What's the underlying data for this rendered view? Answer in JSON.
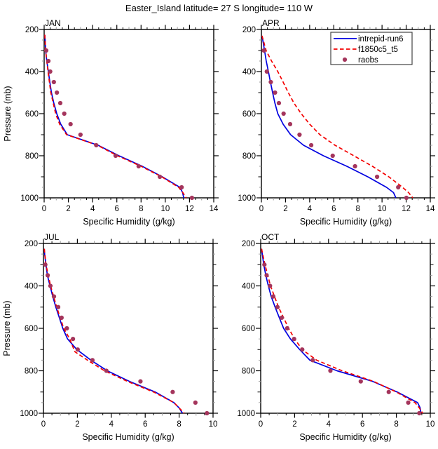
{
  "title": "Easter_Island  latitude= 27 S longitude= 110 W",
  "legend": {
    "entries": [
      {
        "label": "intrepid-run6",
        "marker": "solid-line",
        "color": "#0000E0"
      },
      {
        "label": "f1850c5_t5",
        "marker": "dashed-line",
        "color": "#F40000"
      },
      {
        "label": "raobs",
        "marker": "dot",
        "color": "#A4355C"
      }
    ]
  },
  "colors": {
    "frame": "#000000",
    "minor_tick_gray": "#9a9a9a",
    "intrepid_run6": "#0000E0",
    "f1850c5_t5": "#F40000",
    "raobs": "#A4355C"
  },
  "chart_data": {
    "type": "line",
    "x_label": "Specific Humidity (g/kg)",
    "y_label": "Pressure (mb)",
    "y_axis_inverted": true,
    "y_range": [
      200,
      1000
    ],
    "y_ticks": [
      200,
      400,
      600,
      800,
      1000
    ],
    "panels": [
      {
        "label": "JAN",
        "x_range": [
          0,
          14
        ],
        "x_ticks": [
          0,
          2,
          4,
          6,
          8,
          10,
          12,
          14
        ],
        "series": [
          {
            "name": "intrepid-run6",
            "type": "line",
            "style": "solid",
            "color": "#0000E0",
            "points": [
              [
                225,
                0.05
              ],
              [
                250,
                0.08
              ],
              [
                300,
                0.12
              ],
              [
                350,
                0.22
              ],
              [
                400,
                0.35
              ],
              [
                450,
                0.47
              ],
              [
                500,
                0.6
              ],
              [
                550,
                0.8
              ],
              [
                600,
                1.04
              ],
              [
                650,
                1.37
              ],
              [
                700,
                1.91
              ],
              [
                750,
                4.45
              ],
              [
                800,
                6.18
              ],
              [
                850,
                8.1
              ],
              [
                900,
                9.75
              ],
              [
                950,
                11.2
              ],
              [
                975,
                11.43
              ],
              [
                1000,
                11.52
              ]
            ]
          },
          {
            "name": "f1850c5_t5",
            "type": "line",
            "style": "dashed",
            "color": "#F40000",
            "points": [
              [
                225,
                0.05
              ],
              [
                300,
                0.12
              ],
              [
                400,
                0.32
              ],
              [
                500,
                0.55
              ],
              [
                600,
                0.95
              ],
              [
                650,
                1.28
              ],
              [
                700,
                1.85
              ],
              [
                750,
                4.4
              ],
              [
                800,
                6.05
              ],
              [
                850,
                8.0
              ],
              [
                900,
                9.7
              ],
              [
                950,
                11.1
              ],
              [
                975,
                11.45
              ],
              [
                1000,
                11.72
              ]
            ]
          },
          {
            "name": "raobs",
            "type": "scatter",
            "color": "#A4355C",
            "points": [
              [
                300,
                0.17
              ],
              [
                350,
                0.35
              ],
              [
                400,
                0.5
              ],
              [
                450,
                0.8
              ],
              [
                500,
                1.05
              ],
              [
                550,
                1.33
              ],
              [
                600,
                1.66
              ],
              [
                650,
                2.18
              ],
              [
                700,
                3.0
              ],
              [
                750,
                4.3
              ],
              [
                800,
                5.9
              ],
              [
                850,
                7.8
              ],
              [
                900,
                9.55
              ],
              [
                950,
                11.35
              ],
              [
                1000,
                12.2
              ]
            ]
          }
        ]
      },
      {
        "label": "APR",
        "x_range": [
          0,
          14
        ],
        "x_ticks": [
          0,
          2,
          4,
          6,
          8,
          10,
          12,
          14
        ],
        "has_legend": true,
        "series": [
          {
            "name": "intrepid-run6",
            "type": "line",
            "style": "solid",
            "color": "#0000E0",
            "points": [
              [
                230,
                0.05
              ],
              [
                300,
                0.26
              ],
              [
                350,
                0.4
              ],
              [
                400,
                0.58
              ],
              [
                450,
                0.75
              ],
              [
                500,
                0.93
              ],
              [
                550,
                1.12
              ],
              [
                600,
                1.36
              ],
              [
                650,
                1.8
              ],
              [
                700,
                2.42
              ],
              [
                750,
                3.49
              ],
              [
                800,
                5.14
              ],
              [
                850,
                7.08
              ],
              [
                900,
                8.82
              ],
              [
                950,
                10.37
              ],
              [
                975,
                10.95
              ],
              [
                1000,
                11.15
              ]
            ]
          },
          {
            "name": "f1850c5_t5",
            "type": "line",
            "style": "dashed",
            "color": "#F40000",
            "points": [
              [
                230,
                0.05
              ],
              [
                300,
                0.39
              ],
              [
                350,
                0.84
              ],
              [
                400,
                1.36
              ],
              [
                450,
                1.8
              ],
              [
                500,
                2.23
              ],
              [
                550,
                2.7
              ],
              [
                600,
                3.3
              ],
              [
                650,
                4.0
              ],
              [
                700,
                4.85
              ],
              [
                750,
                6.1
              ],
              [
                800,
                7.66
              ],
              [
                850,
                9.2
              ],
              [
                900,
                10.56
              ],
              [
                950,
                11.7
              ],
              [
                975,
                12.2
              ],
              [
                1000,
                12.55
              ]
            ]
          },
          {
            "name": "raobs",
            "type": "scatter",
            "color": "#A4355C",
            "points": [
              [
                300,
                0.2
              ],
              [
                400,
                0.45
              ],
              [
                450,
                0.78
              ],
              [
                500,
                1.13
              ],
              [
                550,
                1.45
              ],
              [
                600,
                1.84
              ],
              [
                650,
                2.38
              ],
              [
                700,
                3.16
              ],
              [
                750,
                4.13
              ],
              [
                800,
                5.91
              ],
              [
                850,
                7.76
              ],
              [
                900,
                9.59
              ],
              [
                950,
                11.34
              ],
              [
                1000,
                12.02
              ]
            ]
          }
        ]
      },
      {
        "label": "JUL",
        "x_range": [
          0,
          10
        ],
        "x_ticks": [
          0,
          2,
          4,
          6,
          8,
          10
        ],
        "series": [
          {
            "name": "intrepid-run6",
            "type": "line",
            "style": "solid",
            "color": "#0000E0",
            "points": [
              [
                225,
                0.05
              ],
              [
                250,
                0.07
              ],
              [
                300,
                0.15
              ],
              [
                350,
                0.23
              ],
              [
                400,
                0.39
              ],
              [
                450,
                0.55
              ],
              [
                500,
                0.73
              ],
              [
                550,
                0.94
              ],
              [
                600,
                1.14
              ],
              [
                650,
                1.42
              ],
              [
                700,
                1.97
              ],
              [
                750,
                2.8
              ],
              [
                800,
                3.76
              ],
              [
                850,
                5.07
              ],
              [
                900,
                6.59
              ],
              [
                950,
                7.69
              ],
              [
                975,
                8.0
              ],
              [
                1000,
                8.2
              ]
            ]
          },
          {
            "name": "f1850c5_t5",
            "type": "line",
            "style": "dashed",
            "color": "#F40000",
            "points": [
              [
                225,
                0.05
              ],
              [
                300,
                0.15
              ],
              [
                400,
                0.42
              ],
              [
                500,
                0.78
              ],
              [
                600,
                1.2
              ],
              [
                650,
                1.55
              ],
              [
                710,
                1.85
              ],
              [
                750,
                2.6
              ],
              [
                800,
                3.6
              ],
              [
                850,
                4.95
              ],
              [
                900,
                6.5
              ],
              [
                950,
                7.7
              ],
              [
                1000,
                8.3
              ]
            ]
          },
          {
            "name": "raobs",
            "type": "scatter",
            "color": "#A4355C",
            "points": [
              [
                300,
                0.11
              ],
              [
                350,
                0.25
              ],
              [
                400,
                0.41
              ],
              [
                450,
                0.62
              ],
              [
                500,
                0.87
              ],
              [
                550,
                1.07
              ],
              [
                600,
                1.38
              ],
              [
                650,
                1.74
              ],
              [
                700,
                2.02
              ],
              [
                750,
                2.89
              ],
              [
                800,
                3.71
              ],
              [
                850,
                5.72
              ],
              [
                900,
                7.62
              ],
              [
                950,
                8.96
              ],
              [
                1000,
                9.64
              ]
            ]
          }
        ]
      },
      {
        "label": "OCT",
        "x_range": [
          0,
          10
        ],
        "x_ticks": [
          0,
          2,
          4,
          6,
          8,
          10
        ],
        "series": [
          {
            "name": "intrepid-run6",
            "type": "line",
            "style": "solid",
            "color": "#0000E0",
            "points": [
              [
                225,
                0.05
              ],
              [
                300,
                0.18
              ],
              [
                350,
                0.3
              ],
              [
                400,
                0.45
              ],
              [
                450,
                0.62
              ],
              [
                500,
                0.85
              ],
              [
                550,
                1.1
              ],
              [
                600,
                1.35
              ],
              [
                650,
                1.75
              ],
              [
                700,
                2.3
              ],
              [
                750,
                2.9
              ],
              [
                800,
                4.5
              ],
              [
                850,
                6.6
              ],
              [
                900,
                8.05
              ],
              [
                950,
                9.25
              ],
              [
                975,
                9.4
              ],
              [
                1000,
                9.45
              ]
            ]
          },
          {
            "name": "f1850c5_t5",
            "type": "line",
            "style": "dashed",
            "color": "#F40000",
            "points": [
              [
                225,
                0.05
              ],
              [
                300,
                0.25
              ],
              [
                400,
                0.58
              ],
              [
                500,
                1.05
              ],
              [
                600,
                1.65
              ],
              [
                650,
                2.0
              ],
              [
                700,
                2.45
              ],
              [
                750,
                3.3
              ],
              [
                800,
                4.8
              ],
              [
                850,
                6.65
              ],
              [
                900,
                8.0
              ],
              [
                950,
                9.1
              ],
              [
                975,
                9.35
              ],
              [
                1000,
                9.55
              ]
            ]
          },
          {
            "name": "raobs",
            "type": "scatter",
            "color": "#A4355C",
            "points": [
              [
                300,
                0.22
              ],
              [
                350,
                0.35
              ],
              [
                400,
                0.55
              ],
              [
                450,
                0.74
              ],
              [
                500,
                0.99
              ],
              [
                550,
                1.24
              ],
              [
                600,
                1.56
              ],
              [
                650,
                1.97
              ],
              [
                700,
                2.45
              ],
              [
                750,
                3.07
              ],
              [
                800,
                4.11
              ],
              [
                850,
                5.9
              ],
              [
                900,
                7.55
              ],
              [
                950,
                8.7
              ],
              [
                1000,
                9.35
              ]
            ]
          }
        ]
      }
    ]
  }
}
